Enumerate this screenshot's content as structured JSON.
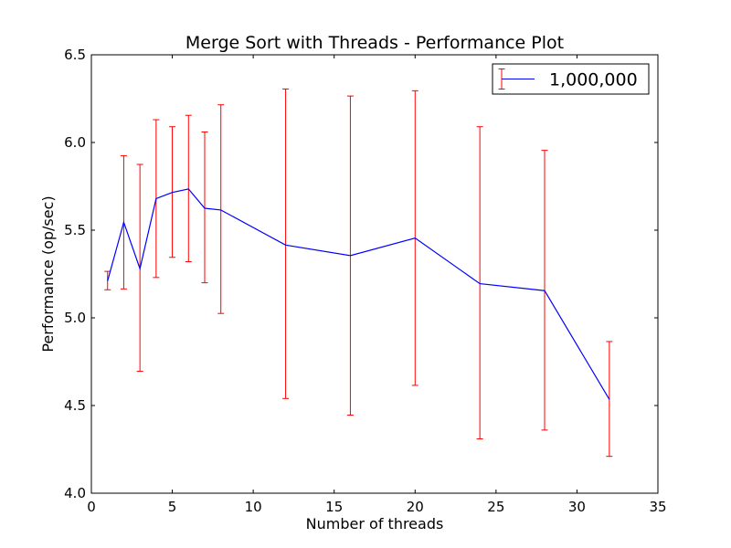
{
  "chart_data": {
    "type": "line",
    "title": "Merge Sort with Threads - Performance Plot",
    "xlabel": "Number of threads",
    "ylabel": "Performance (op/sec)",
    "xlim": [
      0,
      35
    ],
    "ylim": [
      4.0,
      6.5
    ],
    "xticks": [
      0,
      5,
      10,
      15,
      20,
      25,
      30,
      35
    ],
    "xtick_labels": [
      "0",
      "5",
      "10",
      "15",
      "20",
      "25",
      "30",
      "35"
    ],
    "yticks": [
      4.0,
      4.5,
      5.0,
      5.5,
      6.0,
      6.5
    ],
    "ytick_labels": [
      "4.0",
      "4.5",
      "5.0",
      "5.5",
      "6.0",
      "6.5"
    ],
    "grid": false,
    "legend_position": "top-right",
    "series": [
      {
        "name": "1,000,000",
        "line_color": "#0000ff",
        "error_color": "#ff0000",
        "x": [
          1,
          2,
          3,
          4,
          5,
          6,
          7,
          8,
          12,
          16,
          20,
          24,
          28,
          32
        ],
        "y": [
          5.21,
          5.545,
          5.28,
          5.68,
          5.715,
          5.735,
          5.625,
          5.615,
          5.415,
          5.355,
          5.455,
          5.195,
          5.155,
          4.535
        ],
        "err_low": [
          5.16,
          5.165,
          4.695,
          5.23,
          5.345,
          5.32,
          5.2,
          5.025,
          4.54,
          4.445,
          4.615,
          4.31,
          4.36,
          4.21
        ],
        "err_high": [
          5.265,
          5.925,
          5.875,
          6.13,
          6.09,
          6.155,
          6.06,
          6.215,
          6.305,
          6.265,
          6.295,
          6.09,
          5.955,
          4.865
        ]
      }
    ]
  }
}
